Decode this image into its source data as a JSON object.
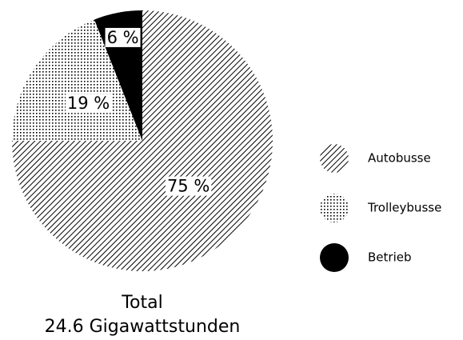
{
  "chart_data": {
    "type": "pie",
    "title": "Total",
    "subtitle": "24.6 Gigawattstunden",
    "categories": [
      "Autobusse",
      "Trolleybusse",
      "Betrieb"
    ],
    "values": [
      75,
      19,
      6
    ],
    "value_labels": [
      "75 %",
      "19 %",
      "6 %"
    ],
    "colors": [
      "#000000",
      "#000000",
      "#000000"
    ],
    "patterns": [
      "hatch",
      "dots",
      "solid"
    ],
    "legend": "right"
  }
}
